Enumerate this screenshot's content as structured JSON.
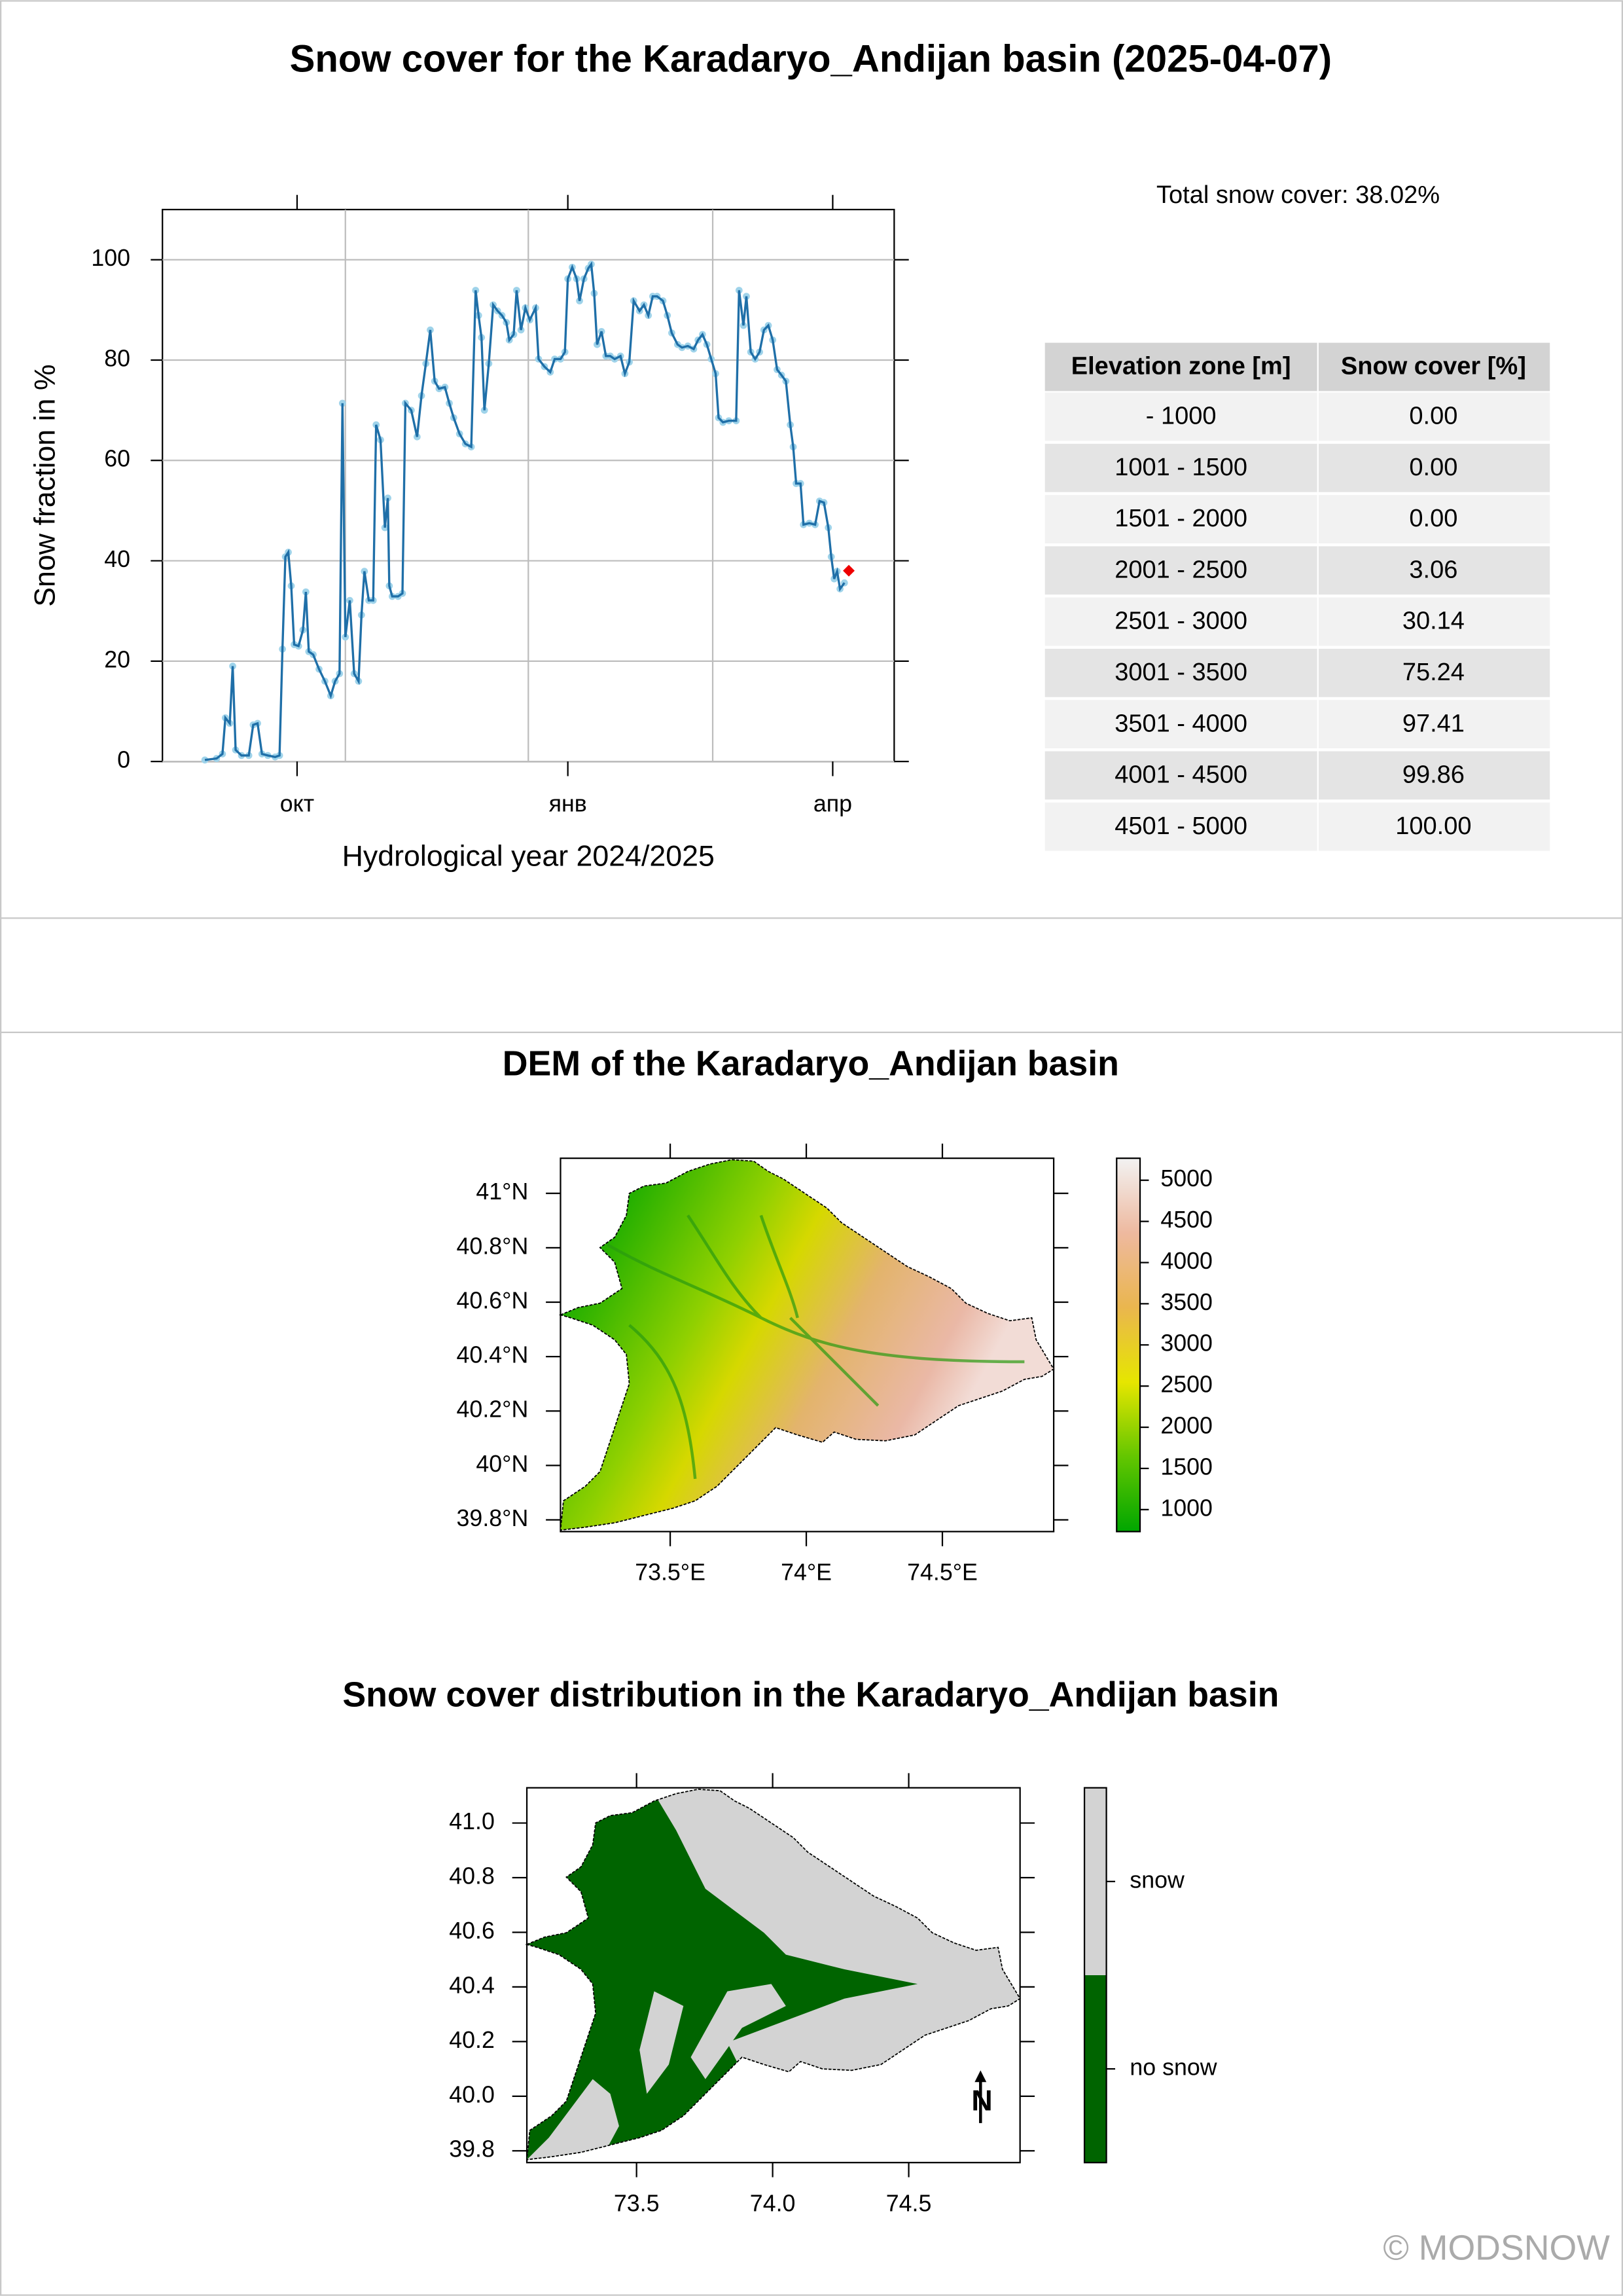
{
  "title": "Snow cover for the Karadaryo_Andijan basin (2025-04-07)",
  "chart_data": {
    "type": "line",
    "xlabel": "Hydrological year 2024/2025",
    "ylabel": "Snow fraction in %",
    "x": [
      0,
      4,
      6,
      7,
      8.5,
      9.5,
      10.5,
      12.5,
      15,
      16.5,
      18,
      19.5,
      21.5,
      24,
      25.5,
      26.5,
      27.5,
      28.5,
      29.5,
      30.5,
      32,
      33.5,
      34.5,
      35.5,
      37,
      39,
      41,
      43,
      44.5,
      46,
      47,
      48,
      49.5,
      51,
      52.5,
      53.5,
      54.5,
      56,
      57.5,
      58.5,
      60,
      61.5,
      62.5,
      63,
      64,
      66,
      67.5,
      68.5,
      70.5,
      72.5,
      74,
      75.5,
      77,
      78.5,
      80,
      82,
      83.5,
      85,
      87,
      89,
      91,
      92.5,
      93.5,
      94.5,
      95.5,
      97,
      98.5,
      100,
      101.5,
      103,
      104,
      105.5,
      106.5,
      108,
      109.5,
      111,
      113,
      114,
      116,
      118,
      119.5,
      121.5,
      123,
      124,
      125.5,
      127,
      128,
      129.5,
      131,
      132,
      133,
      134,
      135.5,
      137,
      138.5,
      140,
      142,
      143.5,
      145,
      146.5,
      148.5,
      150,
      151.5,
      153,
      154.5,
      156.5,
      158,
      159.5,
      161.5,
      163,
      165,
      167,
      168.5,
      170,
      171.5,
      173,
      174.5,
      175.5,
      177,
      179,
      181.5,
      182.5,
      184,
      185,
      186.5,
      188,
      189.5,
      191,
      192.5,
      194,
      195.5,
      197,
      198.5,
      200,
      201,
      202,
      203.5,
      204.5,
      206.5,
      208.5,
      210,
      211.5,
      213,
      214,
      215,
      216,
      217,
      218.5
    ],
    "values": [
      0.3,
      0.6,
      1.5,
      8.7,
      7.6,
      19.0,
      2.3,
      1.2,
      1.2,
      7.3,
      7.6,
      1.5,
      1.2,
      0.9,
      1.2,
      22.4,
      40.8,
      41.7,
      35.0,
      23.3,
      23.0,
      26.2,
      33.8,
      21.9,
      21.3,
      18.4,
      16.0,
      13.1,
      16.0,
      17.5,
      71.4,
      24.8,
      32.1,
      17.5,
      16.0,
      29.2,
      37.9,
      32.1,
      32.1,
      67.1,
      64.1,
      46.6,
      52.5,
      35.0,
      32.9,
      32.9,
      33.5,
      71.4,
      70.0,
      64.7,
      72.9,
      79.3,
      86.0,
      75.8,
      74.3,
      74.6,
      71.4,
      68.5,
      65.3,
      63.3,
      62.7,
      93.9,
      88.9,
      84.5,
      70.0,
      79.3,
      91.0,
      89.8,
      88.9,
      87.5,
      84.0,
      85.1,
      93.9,
      86.0,
      90.4,
      88.0,
      90.4,
      80.2,
      78.7,
      77.6,
      80.2,
      80.2,
      81.6,
      96.2,
      98.5,
      96.2,
      91.8,
      96.2,
      98.3,
      99.1,
      93.3,
      83.1,
      85.7,
      80.8,
      80.8,
      80.2,
      80.8,
      77.3,
      79.6,
      91.8,
      89.8,
      91.0,
      88.9,
      92.7,
      92.7,
      91.8,
      88.9,
      85.4,
      83.1,
      82.5,
      82.8,
      82.2,
      84.0,
      85.1,
      83.1,
      80.2,
      77.3,
      68.5,
      67.6,
      67.9,
      67.9,
      93.9,
      86.9,
      92.7,
      81.6,
      80.2,
      81.6,
      86.0,
      86.9,
      84.0,
      78.1,
      77.0,
      75.8,
      67.1,
      62.7,
      55.4,
      55.4,
      47.2,
      47.5,
      47.2,
      51.9,
      51.6,
      46.6,
      40.8,
      36.4,
      37.9,
      34.4,
      35.6
    ],
    "color": "#1f6fa8",
    "point_color": "#9fd3ea",
    "xlim": [
      -14.5,
      235.5
    ],
    "xticks": [
      {
        "value": 31.5,
        "label": "окт"
      },
      {
        "value": 124,
        "label": "янв"
      },
      {
        "value": 214.5,
        "label": "апр"
      }
    ],
    "xgrid": [
      48,
      110.5,
      173.5
    ],
    "ylim": [
      0,
      110
    ],
    "yticks": [
      0,
      20,
      40,
      60,
      80,
      100
    ],
    "grid": true,
    "current": {
      "x": 220,
      "value": 38.02,
      "color": "#ee0000"
    }
  },
  "summary": "Total snow cover: 38.02%",
  "table": {
    "header": [
      "Elevation zone [m]",
      "Snow cover [%]"
    ],
    "rows": [
      [
        "- 1000",
        "0.00"
      ],
      [
        "1001 - 1500",
        "0.00"
      ],
      [
        "1501 - 2000",
        "0.00"
      ],
      [
        "2001 - 2500",
        "3.06"
      ],
      [
        "2501 - 3000",
        "30.14"
      ],
      [
        "3001 - 3500",
        "75.24"
      ],
      [
        "3501 - 4000",
        "97.41"
      ],
      [
        "4001 - 4500",
        "99.86"
      ],
      [
        "4501 - 5000",
        "100.00"
      ]
    ]
  },
  "dem_map": {
    "title": "DEM of the Karadaryo_Andijan basin",
    "xlim": [
      73.097,
      74.909
    ],
    "ylim": [
      39.757,
      41.129
    ],
    "xticks": [
      {
        "value": 73.5,
        "label": "73.5°E"
      },
      {
        "value": 74,
        "label": "74°E"
      },
      {
        "value": 74.5,
        "label": "74.5°E"
      }
    ],
    "yticks": [
      {
        "value": 41,
        "label": "41°N"
      },
      {
        "value": 40.8,
        "label": "40.8°N"
      },
      {
        "value": 40.6,
        "label": "40.6°N"
      },
      {
        "value": 40.4,
        "label": "40.4°N"
      },
      {
        "value": 40.2,
        "label": "40.2°N"
      },
      {
        "value": 40,
        "label": "40°N"
      },
      {
        "value": 39.8,
        "label": "39.8°N"
      }
    ],
    "colorbar": {
      "zlim": [
        733,
        5267
      ],
      "ticks": [
        1000,
        1500,
        2000,
        2500,
        3000,
        3500,
        4000,
        4500,
        5000
      ],
      "colors": [
        "#00A600",
        "#63C600",
        "#E6E600",
        "#EAB64E",
        "#EEB99F",
        "#F2F2F2"
      ]
    }
  },
  "snow_map": {
    "title": "Snow cover distribution in the Karadaryo_Andijan basin",
    "xlim": [
      73.097,
      74.909
    ],
    "ylim": [
      39.757,
      41.129
    ],
    "xticks": [
      73.5,
      {
        "value": 74,
        "label": "74.0"
      },
      74.5
    ],
    "yticks": [
      {
        "value": 41,
        "label": "41.0"
      },
      40.8,
      40.6,
      40.4,
      40.2,
      {
        "value": 40,
        "label": "40.0"
      },
      39.8
    ],
    "legend": {
      "categories": [
        "no snow",
        "snow"
      ],
      "colors": [
        "#006400",
        "#d3d3d3"
      ]
    }
  },
  "footer": "© MODSNOW"
}
